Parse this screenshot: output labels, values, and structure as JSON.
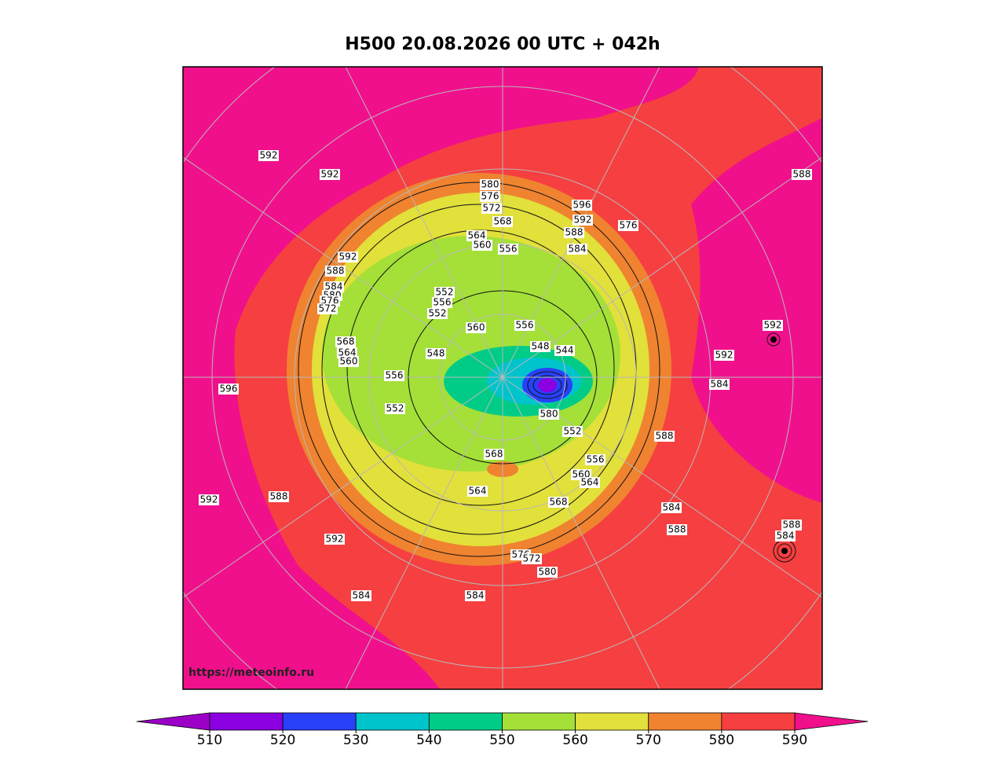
{
  "header": {
    "title": "H500  20.08.2026 00 UTC + 042h"
  },
  "map": {
    "watermark": "https://meteoinfo.ru",
    "contour_labels": [
      "592",
      "592",
      "580",
      "576",
      "572",
      "568",
      "596",
      "592",
      "588",
      "576",
      "584",
      "564",
      "560",
      "556",
      "592",
      "588",
      "584",
      "580",
      "576",
      "572",
      "552",
      "556",
      "552",
      "560",
      "556",
      "548",
      "544",
      "568",
      "564",
      "560",
      "548",
      "556",
      "552",
      "552",
      "596",
      "592",
      "584",
      "588",
      "580",
      "556",
      "560",
      "564",
      "568",
      "564",
      "568",
      "592",
      "588",
      "592",
      "584",
      "584",
      "588",
      "588",
      "584",
      "576",
      "572",
      "580",
      "584",
      "592",
      "588"
    ]
  },
  "colorbar": {
    "levels": [
      510,
      520,
      530,
      540,
      550,
      560,
      570,
      580,
      590
    ],
    "colors": [
      "#8a00e0",
      "#2840f8",
      "#00c4cc",
      "#00cc88",
      "#a4e038",
      "#e2e03a",
      "#ef8330",
      "#f63f40"
    ],
    "under_color": "#9c00c8",
    "over_color": "#f0108c"
  }
}
